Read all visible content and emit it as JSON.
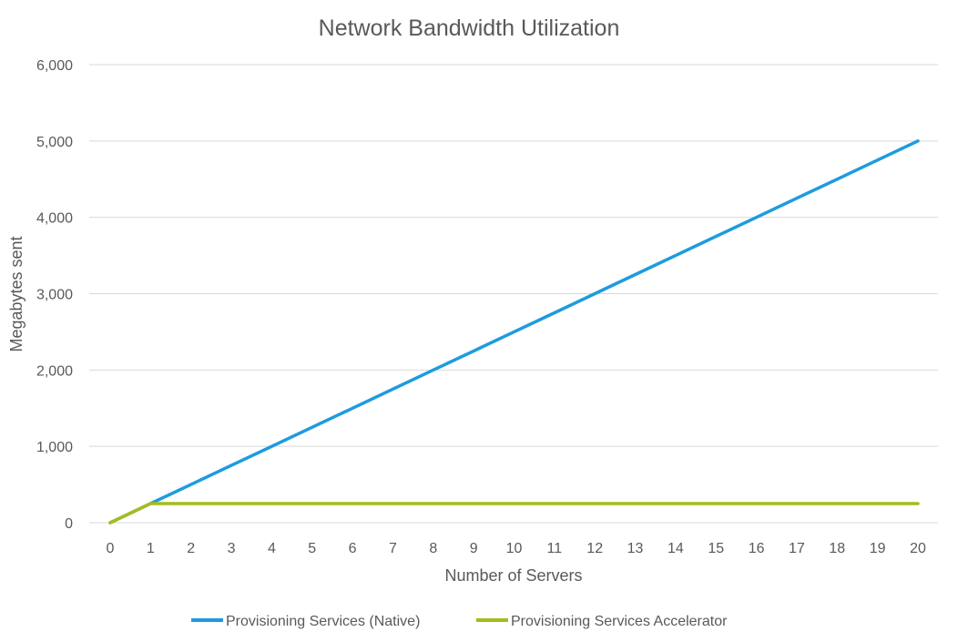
{
  "chart_data": {
    "type": "line",
    "title": "Network Bandwidth Utilization",
    "xlabel": "Number of Servers",
    "ylabel": "Megabytes sent",
    "x": [
      0,
      1,
      2,
      3,
      4,
      5,
      6,
      7,
      8,
      9,
      10,
      11,
      12,
      13,
      14,
      15,
      16,
      17,
      18,
      19,
      20
    ],
    "x_tick_labels": [
      "0",
      "1",
      "2",
      "3",
      "4",
      "5",
      "6",
      "7",
      "8",
      "9",
      "10",
      "11",
      "12",
      "13",
      "14",
      "15",
      "16",
      "17",
      "18",
      "19",
      "20"
    ],
    "ylim": [
      0,
      6000
    ],
    "y_ticks": [
      0,
      1000,
      2000,
      3000,
      4000,
      5000,
      6000
    ],
    "y_tick_labels": [
      "0",
      "1,000",
      "2,000",
      "3,000",
      "4,000",
      "5,000",
      "6,000"
    ],
    "grid": "horizontal",
    "legend_position": "bottom",
    "series": [
      {
        "name": "Provisioning Services (Native)",
        "color": "#1e9bde",
        "values": [
          0,
          250,
          500,
          750,
          1000,
          1250,
          1500,
          1750,
          2000,
          2250,
          2500,
          2750,
          3000,
          3250,
          3500,
          3750,
          4000,
          4250,
          4500,
          4750,
          5000
        ]
      },
      {
        "name": "Provisioning Services Accelerator",
        "color": "#a3bd1b",
        "values": [
          0,
          250,
          250,
          250,
          250,
          250,
          250,
          250,
          250,
          250,
          250,
          250,
          250,
          250,
          250,
          250,
          250,
          250,
          250,
          250,
          250
        ]
      }
    ]
  }
}
